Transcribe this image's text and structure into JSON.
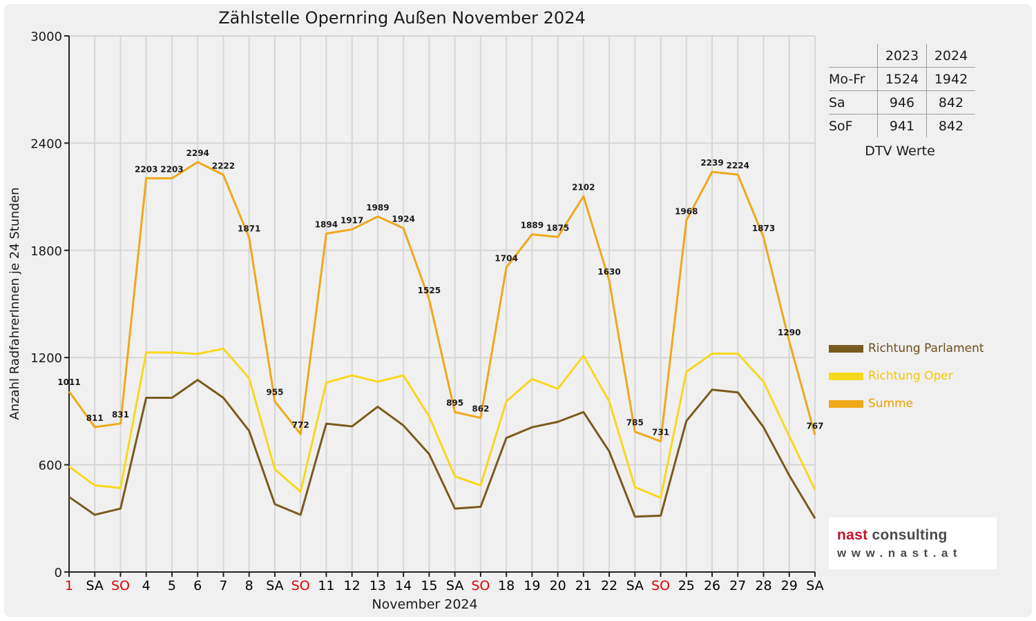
{
  "chart_data": {
    "type": "line",
    "title": "Zählstelle Opernring Außen November 2024",
    "xlabel": "November 2024",
    "ylabel": "Anzahl RadfahrerInnen je 24 Stunden",
    "ylim": [
      0,
      3000
    ],
    "yticks": [
      "0",
      "600",
      "1200",
      "1800",
      "2400",
      "3000"
    ],
    "categories": [
      "1",
      "SA",
      "SO",
      "4",
      "5",
      "6",
      "7",
      "8",
      "SA",
      "SO",
      "11",
      "12",
      "13",
      "14",
      "15",
      "SA",
      "SO",
      "18",
      "19",
      "20",
      "21",
      "22",
      "SA",
      "SO",
      "25",
      "26",
      "27",
      "28",
      "29",
      "SA"
    ],
    "category_colors": [
      "#e00000",
      "#000000",
      "#e00000",
      "#000000",
      "#000000",
      "#000000",
      "#000000",
      "#000000",
      "#000000",
      "#e00000",
      "#000000",
      "#000000",
      "#000000",
      "#000000",
      "#000000",
      "#000000",
      "#e00000",
      "#000000",
      "#000000",
      "#000000",
      "#000000",
      "#000000",
      "#000000",
      "#e00000",
      "#000000",
      "#000000",
      "#000000",
      "#000000",
      "#000000",
      "#000000"
    ],
    "grid": true,
    "legend_position": "right",
    "series": [
      {
        "name": "Richtung Parlament",
        "color": "#7a5a1e",
        "values": [
          420,
          320,
          355,
          975,
          975,
          1075,
          975,
          790,
          380,
          320,
          830,
          815,
          925,
          820,
          660,
          355,
          365,
          750,
          810,
          840,
          895,
          675,
          310,
          315,
          845,
          1020,
          1005,
          810,
          540,
          300
        ]
      },
      {
        "name": "Richtung Oper",
        "color": "#f7d81c",
        "values": [
          590,
          485,
          470,
          1228,
          1228,
          1220,
          1250,
          1085,
          575,
          450,
          1060,
          1100,
          1065,
          1100,
          870,
          535,
          485,
          955,
          1080,
          1025,
          1210,
          955,
          475,
          415,
          1120,
          1222,
          1222,
          1065,
          760,
          460
        ]
      },
      {
        "name": "Summe",
        "color": "#f0a81a",
        "values": [
          1011,
          811,
          831,
          2203,
          2203,
          2294,
          2222,
          1871,
          955,
          772,
          1894,
          1917,
          1989,
          1924,
          1525,
          895,
          862,
          1704,
          1889,
          1875,
          2102,
          1630,
          785,
          731,
          1968,
          2239,
          2224,
          1873,
          1290,
          767
        ],
        "data_labels": [
          "1011",
          "811",
          "831",
          "2203",
          "2203",
          "2294",
          "2222",
          "1871",
          "955",
          "772",
          "1894",
          "1917",
          "1989",
          "1924",
          "1525",
          "895",
          "862",
          "1704",
          "1889",
          "1875",
          "2102",
          "1630",
          "785",
          "731",
          "1968",
          "2239",
          "2224",
          "1873",
          "1290",
          "767"
        ]
      }
    ]
  },
  "dtv": {
    "headers": [
      "2023",
      "2024"
    ],
    "rows": [
      {
        "label": "Mo-Fr",
        "v2023": "1524",
        "v2024": "1942"
      },
      {
        "label": "Sa",
        "v2023": "946",
        "v2024": "842"
      },
      {
        "label": "SoF",
        "v2023": "941",
        "v2024": "842"
      }
    ],
    "caption": "DTV Werte"
  },
  "logo": {
    "name_part1": "nast",
    "name_part2": "consulting",
    "url": "www.nast.at"
  }
}
